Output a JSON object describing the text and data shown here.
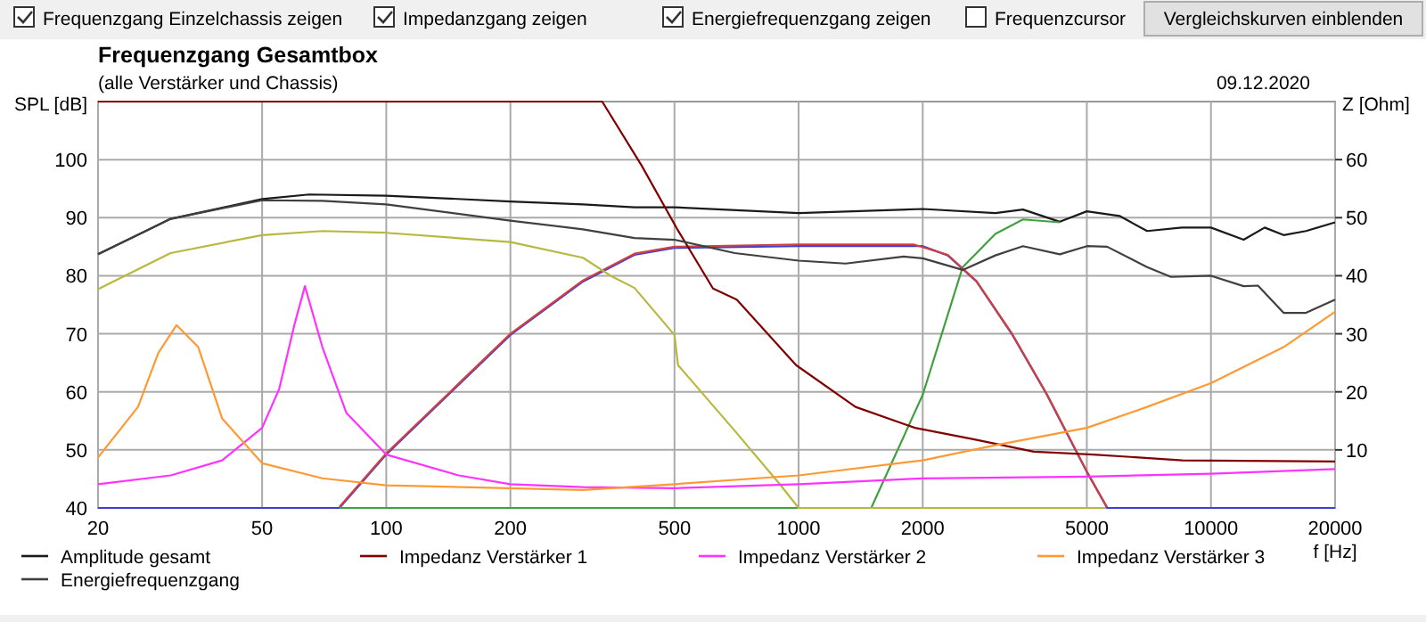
{
  "chart_data": {
    "type": "line",
    "title": "Frequenzgang Gesamtbox",
    "subtitle": "(alle Verstärker und Chassis)",
    "xlabel": "f [Hz]",
    "ylabel": "SPL [dB]",
    "y2label": "Z [Ohm]",
    "annotations": [
      "09.12.2020",
      "Frequenzgang Einzelchassis zeigen",
      "Impedanzgang zeigen",
      "Energiefrequenzgang zeigen",
      "Frequenzcursor",
      "Vergleichskurven einblenden"
    ],
    "log": "x",
    "grid": true,
    "legend": "bottom",
    "line_style": "solid",
    "marker": "none",
    "xlim": [
      20,
      20000
    ],
    "xticks": [
      20,
      50,
      100,
      200,
      500,
      1000,
      2000,
      5000,
      10000,
      20000
    ],
    "ylim": [
      40,
      110
    ],
    "yticks": [
      40,
      50,
      60,
      70,
      80,
      90,
      100
    ],
    "y2lim": [
      0,
      70
    ],
    "y2ticks": [
      10,
      20,
      30,
      40,
      50,
      60
    ],
    "series": [
      {
        "name": "Amplitude gesamt",
        "color": "#1a1a1a",
        "x": [
          20,
          30,
          50,
          65,
          100,
          200,
          300,
          400,
          500,
          1000,
          2000,
          3000,
          3500,
          4300,
          5000,
          6000,
          7000,
          8500,
          10000,
          12000,
          13500,
          15000,
          17000,
          20000
        ],
        "values": [
          83.7,
          89.8,
          93.2,
          94,
          93.8,
          92.8,
          92.3,
          91.8,
          91.8,
          90.8,
          91.5,
          90.8,
          91.4,
          89.3,
          91.1,
          90.3,
          87.7,
          88.3,
          88.3,
          86.2,
          88.3,
          87,
          87.7,
          89.2
        ]
      },
      {
        "color": "#4040d0",
        "x": [
          20,
          77,
          100,
          200,
          300,
          400,
          500,
          1000,
          2000,
          2300,
          2700,
          3300,
          4000,
          5000,
          5600,
          20000
        ],
        "values": [
          40,
          40,
          49.2,
          69.8,
          79,
          83.6,
          84.8,
          85.1,
          85.1,
          83.5,
          79,
          69.8,
          59.5,
          46.2,
          40,
          40
        ]
      },
      {
        "color": "#40a040",
        "x": [
          77,
          1500,
          2000,
          2500,
          3000,
          3500,
          4300
        ],
        "values": [
          40,
          40,
          59.5,
          81.5,
          87.2,
          89.7,
          89.2
        ]
      },
      {
        "color": "#d04040",
        "x": [
          77,
          100,
          200,
          300,
          400,
          500,
          1000,
          1900,
          2300,
          2700,
          3300,
          4000,
          5000,
          5600
        ],
        "values": [
          40.2,
          49.4,
          70,
          79.2,
          83.8,
          85,
          85.4,
          85.4,
          83.6,
          79.1,
          69.9,
          59.6,
          46.3,
          40.1
        ]
      },
      {
        "color": "#b8b840",
        "x": [
          20,
          30,
          50,
          70,
          100,
          200,
          300,
          350,
          400,
          500,
          510,
          700,
          900,
          1000,
          5500
        ],
        "values": [
          77.7,
          83.9,
          87,
          87.7,
          87.4,
          85.8,
          83.1,
          80,
          77.9,
          69.8,
          64.6,
          53.3,
          44.1,
          40,
          40
        ]
      },
      {
        "name": "Impedanz Verstärker 1",
        "color": "#800000",
        "axis": "y2",
        "x": [
          20,
          334,
          416,
          508,
          620,
          708,
          986,
          1374,
          1915,
          2670,
          3720,
          5183,
          8527,
          20000
        ],
        "values": [
          70,
          70,
          59,
          48,
          37.8,
          35.9,
          24.6,
          17.4,
          13.8,
          11.8,
          9.7,
          9.2,
          8.2,
          8
        ]
      },
      {
        "name": "Impedanz Verstärker 2",
        "color": "#ff33ff",
        "axis": "y2",
        "x": [
          20,
          30,
          40,
          50,
          55,
          60,
          63.5,
          70,
          80,
          100,
          150,
          200,
          300,
          500,
          1000,
          2000,
          5000,
          10000,
          20000
        ],
        "values": [
          4.1,
          5.6,
          8.2,
          13.8,
          20.5,
          31.8,
          38.2,
          27.7,
          16.4,
          9.2,
          5.6,
          4.1,
          3.6,
          3.4,
          4.1,
          5.1,
          5.4,
          5.9,
          6.7
        ]
      },
      {
        "name": "Impedanz Verstärker 3",
        "color": "#ff9933",
        "axis": "y2",
        "x": [
          20,
          25,
          28,
          31,
          35,
          40,
          50,
          70,
          100,
          300,
          500,
          1000,
          2000,
          3000,
          5000,
          7000,
          10000,
          15000,
          20000
        ],
        "values": [
          8.7,
          17.4,
          26.7,
          31.5,
          27.7,
          15.4,
          7.7,
          5.1,
          3.9,
          3.1,
          4.1,
          5.6,
          8.2,
          10.8,
          13.8,
          17.4,
          21.5,
          27.7,
          33.8
        ]
      },
      {
        "name": "Energiefrequenzgang",
        "color": "#404040",
        "x": [
          20,
          30,
          50,
          70,
          100,
          200,
          300,
          400,
          500,
          700,
          1000,
          1300,
          1800,
          2000,
          2500,
          3000,
          3500,
          4300,
          5000,
          5600,
          7000,
          8000,
          10000,
          12000,
          13000,
          15000,
          17000,
          20000
        ],
        "values": [
          83.7,
          89.8,
          93,
          92.9,
          92.3,
          89.5,
          88,
          86.5,
          86.2,
          83.9,
          82.6,
          82.1,
          83.3,
          83,
          81,
          83.5,
          85.1,
          83.7,
          85.1,
          85,
          81.5,
          79.8,
          80,
          78.2,
          78.3,
          73.6,
          73.6,
          75.9
        ]
      }
    ]
  }
}
